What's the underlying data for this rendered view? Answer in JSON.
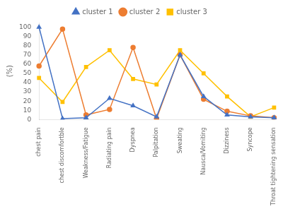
{
  "chart_data": {
    "type": "line",
    "categories": [
      "chest pain",
      "chest discomfortble",
      "Weakness/Fatigue",
      "Radiating pain",
      "Dyspnea",
      "Palpitation",
      "Sweating",
      "Nausca/Vomiting",
      "Dizziness",
      "Syncope",
      "Throat tightening sensation"
    ],
    "series": [
      {
        "name": "cluster 1",
        "color": "#4472C4",
        "marker": "triangle",
        "values": [
          100,
          1,
          2,
          23,
          15,
          3,
          70,
          25,
          5,
          3,
          2
        ]
      },
      {
        "name": "cluster 2",
        "color": "#ED7D31",
        "marker": "circle",
        "values": [
          58,
          98,
          5,
          11,
          78,
          1,
          70,
          22,
          9,
          4,
          2
        ]
      },
      {
        "name": "cluster 3",
        "color": "#FFC000",
        "marker": "square",
        "values": [
          45,
          19,
          57,
          75,
          44,
          38,
          75,
          50,
          25,
          3,
          13
        ]
      }
    ],
    "y_label": "(%)",
    "ylim": [
      0,
      105
    ],
    "yticks": [
      0,
      10,
      20,
      30,
      40,
      50,
      60,
      70,
      80,
      90,
      100
    ],
    "grid": false,
    "legend": "top"
  }
}
